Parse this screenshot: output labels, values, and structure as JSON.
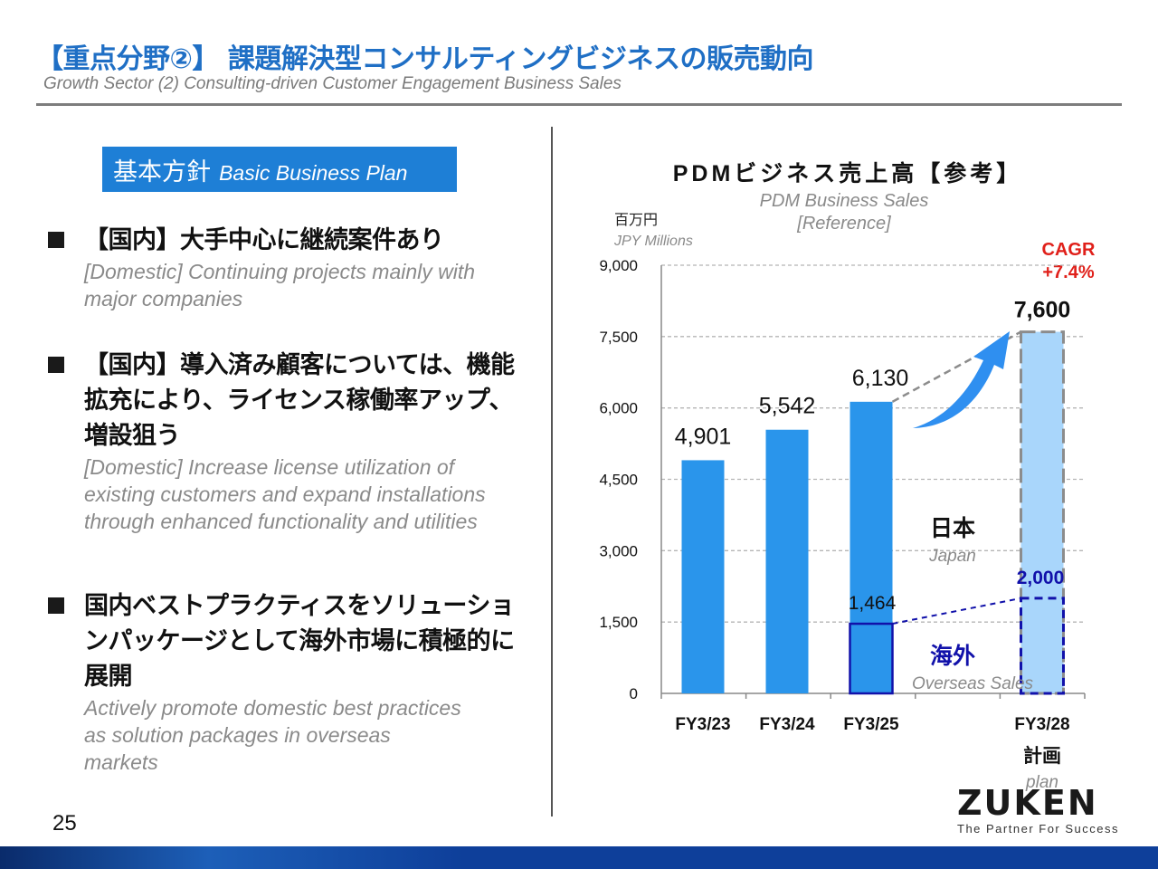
{
  "header": {
    "title": "【重点分野②】 課題解決型コンサルティングビジネスの販売動向",
    "subtitle": "Growth Sector (2) Consulting-driven Customer Engagement Business Sales"
  },
  "plan": {
    "label_jp": "基本方針",
    "label_en": "Basic Business Plan"
  },
  "bullets": [
    {
      "jp": "【国内】大手中心に継続案件あり",
      "en": " [Domestic] Continuing projects mainly with major companies"
    },
    {
      "jp": "【国内】導入済み顧客については、機能拡充により、ライセンス稼働率アップ、増設狙う",
      "en": " [Domestic] Increase license utilization of existing customers and expand installations through enhanced functionality and utilities"
    },
    {
      "jp": "国内ベストプラクティスをソリューションパッケージとして海外市場に積極的に展開",
      "en": "Actively promote domestic best practices as solution packages in overseas markets"
    }
  ],
  "page_number": "25",
  "logo": {
    "name": "ZUKEN",
    "tagline": "The Partner For Success"
  },
  "colors": {
    "title": "#1f6fc5",
    "bar": "#2a95eb",
    "plan_bar": "#a9d6fb",
    "overseas": "#1111aa",
    "cagr": "#e0201a",
    "arrow": "#2f8ff0"
  },
  "chart_data": {
    "type": "bar",
    "title": "PDMビジネス売上高【参考】",
    "subtitle": "PDM Business Sales [Reference]",
    "unit_jp": "百万円",
    "unit_en": "JPY Millions",
    "categories": [
      "FY3/23",
      "FY3/24",
      "FY3/25",
      "FY3/28"
    ],
    "plan_label_jp": "計画",
    "plan_label_en": "plan",
    "series": [
      {
        "name": "",
        "values": [
          4901,
          5542,
          6130,
          7600
        ],
        "labels": [
          "4,901",
          "5,542",
          "6,130",
          "7,600"
        ]
      }
    ],
    "overseas": {
      "label_jp": "海外",
      "label_en": "Overseas Sales",
      "values": {
        "FY3/25": 1464,
        "FY3/28": 2000
      },
      "labels": {
        "FY3/25": "1,464",
        "FY3/28": "2,000"
      }
    },
    "japan": {
      "label_jp": "日本",
      "label_en": "Japan"
    },
    "cagr": {
      "line1": "CAGR",
      "line2": "+7.4%"
    },
    "ylim": [
      0,
      9000
    ],
    "yticks": [
      0,
      1500,
      3000,
      4500,
      6000,
      7500,
      9000
    ],
    "ytick_labels": [
      "0",
      "1,500",
      "3,000",
      "4,500",
      "6,000",
      "7,500",
      "9,000"
    ],
    "grid": true
  }
}
